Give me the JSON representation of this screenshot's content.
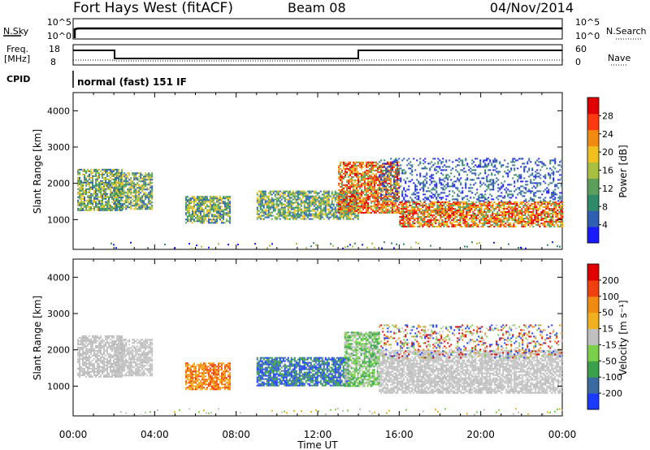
{
  "header": {
    "title": "Fort Hays West (fitACF)",
    "beam": "Beam 08",
    "date": "04/Nov/2014"
  },
  "status": {
    "nsky_label": "N.Sky",
    "nsearch_label": "N.Search",
    "freq_label_1": "Freq.",
    "freq_label_2": "[MHz]",
    "nave_label": "Nave",
    "cpid_label": "CPID",
    "cpid_text": "normal (fast) 151 IF",
    "noise_ticks_left": [
      "10^5",
      "10^0"
    ],
    "noise_ticks_right": [
      "10^5",
      "10^0"
    ],
    "freq_ticks": [
      "18",
      "8"
    ],
    "nave_ticks": [
      "60",
      "0"
    ]
  },
  "chart_data": [
    {
      "type": "heatmap",
      "panel": "power",
      "title": "",
      "xlabel": "",
      "ylabel": "Slant Range [km]",
      "x_ticks": [
        "00:00",
        "04:00",
        "08:00",
        "12:00",
        "16:00",
        "20:00",
        "00:00"
      ],
      "y_ticks": [
        "1000",
        "2000",
        "3000",
        "4000"
      ],
      "ylim": [
        180,
        4500
      ],
      "xlim_hours": [
        0,
        24
      ],
      "colorbar": {
        "label": "Power [dB]",
        "ticks": [
          "4",
          "8",
          "12",
          "16",
          "20",
          "24",
          "28"
        ],
        "range": [
          0,
          32
        ],
        "colors": [
          "#1a1aff",
          "#2f5fb0",
          "#2f8a6a",
          "#5aa05a",
          "#a8c040",
          "#f0c020",
          "#f08a10",
          "#ff3a10",
          "#e00000"
        ]
      },
      "regions": [
        {
          "x0": 0.2,
          "x1": 2.4,
          "y0": 1250,
          "y1": 2400,
          "level": "mid"
        },
        {
          "x0": 2.0,
          "x1": 3.9,
          "y0": 1300,
          "y1": 2300,
          "level": "mid"
        },
        {
          "x0": 5.5,
          "x1": 7.7,
          "y0": 900,
          "y1": 1650,
          "level": "mid"
        },
        {
          "x0": 9.0,
          "x1": 14.0,
          "y0": 1000,
          "y1": 1800,
          "level": "mid"
        },
        {
          "x0": 13.0,
          "x1": 16.0,
          "y0": 1200,
          "y1": 2600,
          "level": "high"
        },
        {
          "x0": 16.0,
          "x1": 24.0,
          "y0": 800,
          "y1": 1500,
          "level": "high"
        },
        {
          "x0": 15.0,
          "x1": 24.0,
          "y0": 1500,
          "y1": 2700,
          "level": "low"
        }
      ]
    },
    {
      "type": "heatmap",
      "panel": "velocity",
      "title": "",
      "xlabel": "Time UT",
      "ylabel": "Slant Range [km]",
      "x_ticks": [
        "00:00",
        "04:00",
        "08:00",
        "12:00",
        "16:00",
        "20:00",
        "00:00"
      ],
      "y_ticks": [
        "1000",
        "2000",
        "3000",
        "4000"
      ],
      "ylim": [
        180,
        4500
      ],
      "xlim_hours": [
        0,
        24
      ],
      "colorbar": {
        "label": "Velocity [m s⁻¹]",
        "ticks": [
          "200",
          "100",
          "50",
          "15",
          "-15",
          "-50",
          "-100",
          "-200"
        ],
        "colors": [
          "#1a3aff",
          "#3a6aa0",
          "#3aa04a",
          "#7ad04a",
          "#c0c0c0",
          "#f0b020",
          "#f08a10",
          "#f04010",
          "#e00000"
        ]
      },
      "regions": [
        {
          "x0": 0.2,
          "x1": 2.4,
          "y0": 1250,
          "y1": 2400,
          "level": "ground"
        },
        {
          "x0": 2.0,
          "x1": 3.9,
          "y0": 1300,
          "y1": 2300,
          "level": "ground"
        },
        {
          "x0": 5.5,
          "x1": 7.7,
          "y0": 900,
          "y1": 1650,
          "level": "away"
        },
        {
          "x0": 9.0,
          "x1": 13.5,
          "y0": 1000,
          "y1": 1800,
          "level": "toward"
        },
        {
          "x0": 13.3,
          "x1": 15.0,
          "y0": 1000,
          "y1": 2500,
          "level": "toward-slow"
        },
        {
          "x0": 15.0,
          "x1": 24.0,
          "y0": 800,
          "y1": 2000,
          "level": "ground"
        },
        {
          "x0": 15.0,
          "x1": 24.0,
          "y0": 1800,
          "y1": 2700,
          "level": "mixed"
        }
      ]
    }
  ]
}
